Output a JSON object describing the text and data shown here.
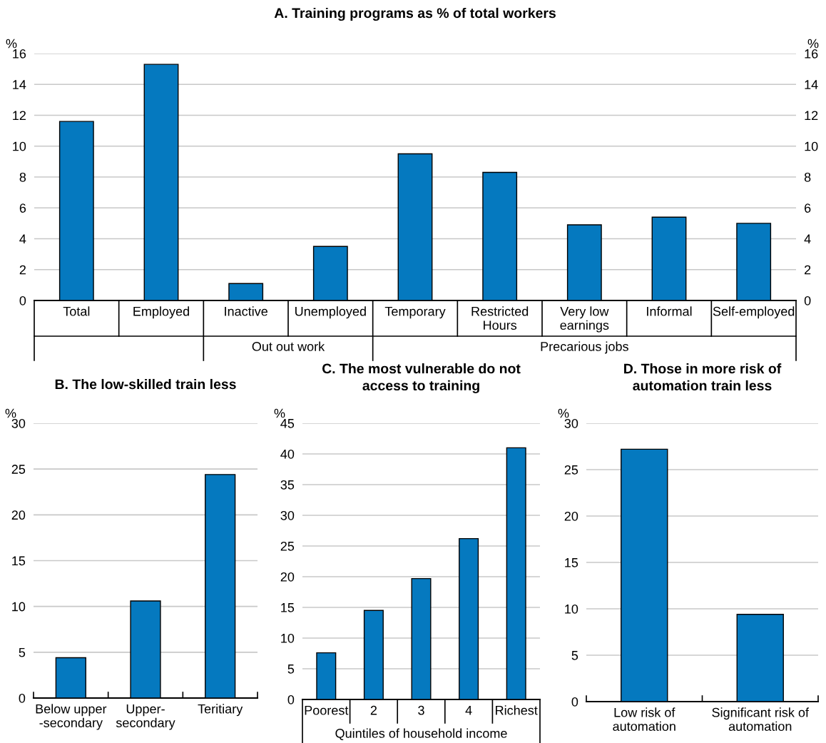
{
  "chart_data": [
    {
      "type": "bar",
      "title": "A. Training programs as % of total workers",
      "ylabel": "%",
      "y2label": "%",
      "categories": [
        "Total",
        "Employed",
        "Inactive",
        "Unemployed",
        "Temporary",
        "Restricted\nHours",
        "Very low\nearnings",
        "Informal",
        "Self-employed"
      ],
      "values": [
        11.6,
        15.3,
        1.1,
        3.5,
        9.5,
        8.3,
        4.9,
        5.4,
        5.0
      ],
      "color": "#0579bf",
      "ylim": [
        0,
        16
      ],
      "yticks": [
        0,
        2,
        4,
        6,
        8,
        10,
        12,
        14,
        16
      ],
      "y2lim": [
        0,
        16
      ],
      "y2ticks": [
        0,
        2,
        4,
        6,
        8,
        10,
        12,
        14,
        16
      ],
      "grid": "y",
      "annotations": [
        "Out out work",
        "Precarious jobs"
      ]
    },
    {
      "type": "bar",
      "title": "B. The low-skilled train less",
      "ylabel": "%",
      "categories": [
        "Below upper\n-secondary",
        "Upper-\nsecondary",
        "Teritiary"
      ],
      "values": [
        4.4,
        10.6,
        24.4
      ],
      "color": "#0579bf",
      "ylim": [
        0,
        30
      ],
      "yticks": [
        0,
        5,
        10,
        15,
        20,
        25,
        30
      ],
      "grid": "y"
    },
    {
      "type": "bar",
      "title": "C. The most vulnerable do not\naccess to training",
      "ylabel": "%",
      "categories": [
        "Poorest",
        "2",
        "3",
        "4",
        "Richest"
      ],
      "values": [
        7.6,
        14.5,
        19.7,
        26.2,
        41.0
      ],
      "color": "#0579bf",
      "ylim": [
        0,
        45
      ],
      "yticks": [
        0,
        5,
        10,
        15,
        20,
        25,
        30,
        35,
        40,
        45
      ],
      "grid": "y",
      "annotations": [
        "Quintiles of household income"
      ]
    },
    {
      "type": "bar",
      "title": "D. Those in more risk of\nautomation train less",
      "ylabel": "%",
      "categories": [
        "Low risk of\nautomation",
        "Significant risk of\nautomation"
      ],
      "values": [
        27.2,
        9.4
      ],
      "color": "#0579bf",
      "ylim": [
        0,
        30
      ],
      "yticks": [
        0,
        5,
        10,
        15,
        20,
        25,
        30
      ],
      "grid": "y"
    }
  ]
}
